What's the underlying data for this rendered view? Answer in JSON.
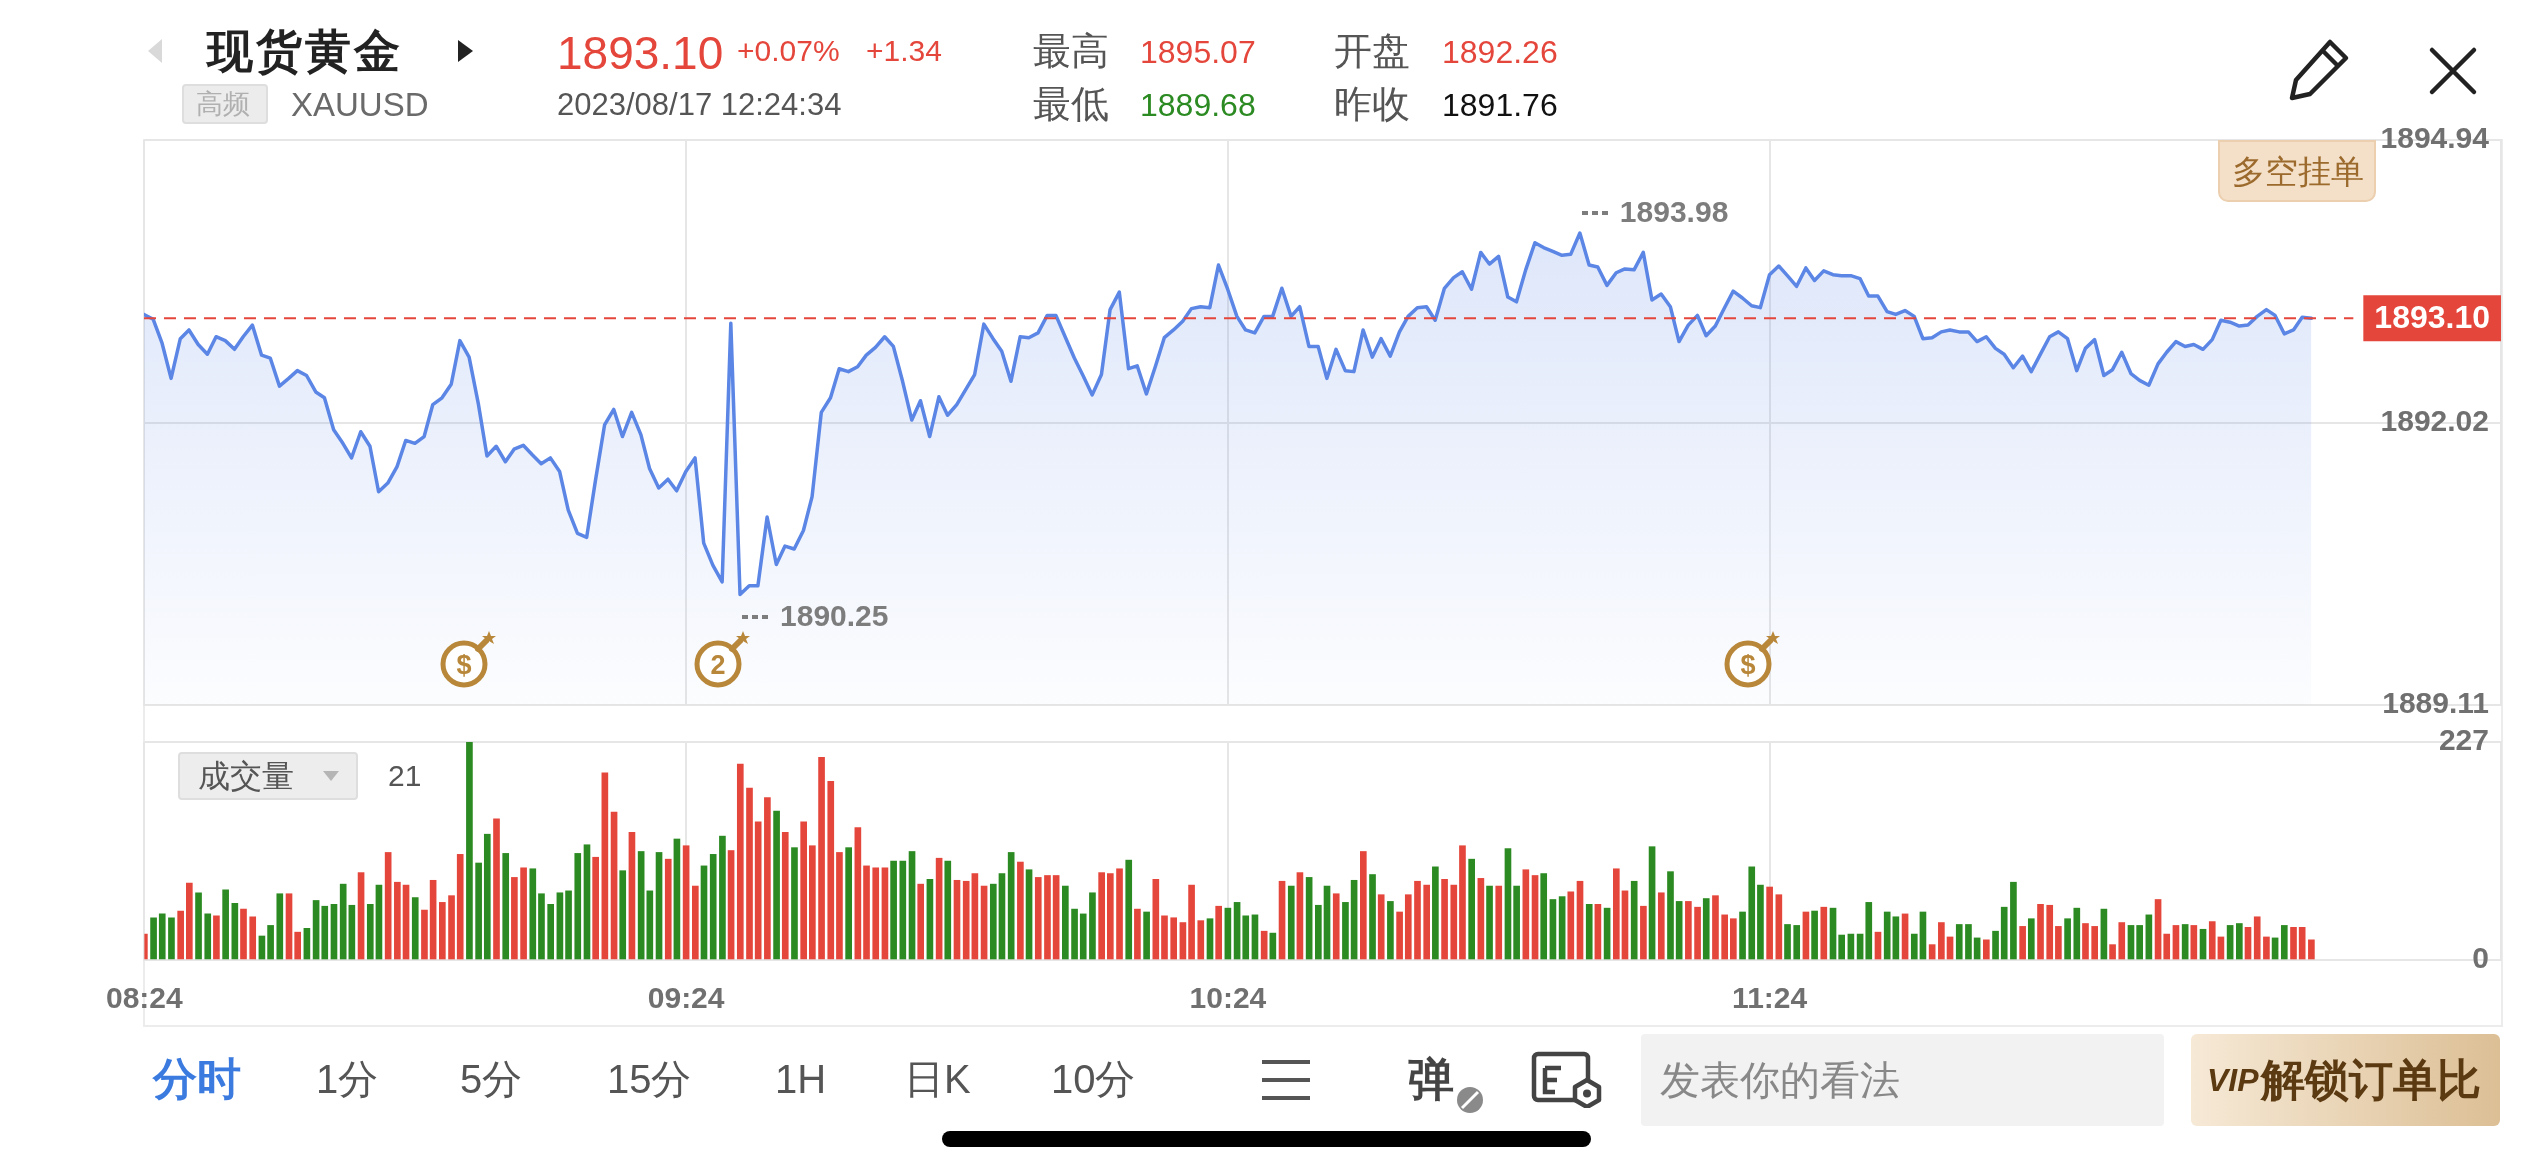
{
  "chart_data": [
    {
      "type": "area",
      "title": "现货黄金",
      "subtitle": "XAUUSD",
      "x": [
        8.4,
        8.417,
        8.433,
        8.45,
        8.467,
        8.483,
        8.5,
        8.517,
        8.533,
        8.55,
        8.567,
        8.583,
        8.6,
        8.617,
        8.633,
        8.65,
        8.667,
        8.683,
        8.7,
        8.717,
        8.733,
        8.75,
        8.767,
        8.783,
        8.8,
        8.817,
        8.833,
        8.85,
        8.867,
        8.883,
        8.9,
        8.917,
        8.933,
        8.95,
        8.967,
        8.983,
        9,
        9.017,
        9.033,
        9.05,
        9.067,
        9.083,
        9.1,
        9.117,
        9.133,
        9.15,
        9.167,
        9.183,
        9.2,
        9.217,
        9.233,
        9.25,
        9.267,
        9.283,
        9.3,
        9.317,
        9.333,
        9.35,
        9.367,
        9.383,
        9.4,
        9.417,
        9.433,
        9.45,
        9.467,
        9.483,
        9.5,
        9.517,
        9.533,
        9.55,
        9.567,
        9.583,
        9.6,
        9.617,
        9.633,
        9.65,
        9.667,
        9.683,
        9.7,
        9.717,
        9.733,
        9.75,
        9.767,
        9.783,
        9.8,
        9.817,
        9.833,
        9.85,
        9.867,
        9.883,
        9.9,
        9.917,
        9.933,
        9.95,
        9.967,
        9.983,
        10,
        10.017,
        10.033,
        10.05,
        10.067,
        10.083,
        10.1,
        10.117,
        10.133,
        10.15,
        10.167,
        10.183,
        10.2,
        10.217,
        10.233,
        10.25,
        10.267,
        10.283,
        10.3,
        10.317,
        10.333,
        10.35,
        10.367,
        10.383,
        10.4,
        10.417,
        10.433,
        10.45,
        10.467,
        10.483,
        10.5,
        10.517,
        10.533,
        10.55,
        10.567,
        10.583,
        10.6,
        10.617,
        10.633,
        10.65,
        10.667,
        10.683,
        10.7,
        10.717,
        10.733,
        10.75,
        10.767,
        10.783,
        10.8,
        10.817,
        10.833,
        10.85,
        10.867,
        10.883,
        10.9,
        10.917,
        10.933,
        10.95,
        10.967,
        10.983,
        11,
        11.017,
        11.033,
        11.05,
        11.067,
        11.083,
        11.1,
        11.117,
        11.133,
        11.15,
        11.167,
        11.183,
        11.2,
        11.217,
        11.233,
        11.25,
        11.267,
        11.283,
        11.3,
        11.317,
        11.333,
        11.35,
        11.367,
        11.383,
        11.4,
        11.417,
        11.433,
        11.45,
        11.467,
        11.483,
        11.5,
        11.517,
        11.533,
        11.55,
        11.567,
        11.583,
        11.6,
        11.617,
        11.633,
        11.65,
        11.667,
        11.683,
        11.7,
        11.717,
        11.733,
        11.75,
        11.767,
        11.783,
        11.8,
        11.817,
        11.833,
        11.85,
        11.867,
        11.883,
        11.9,
        11.917,
        11.933,
        11.95,
        11.967,
        11.983,
        12,
        12.017,
        12.033,
        12.05,
        12.067,
        12.083,
        12.1,
        12.117,
        12.133,
        12.15,
        12.167,
        12.183,
        12.2,
        12.217,
        12.233,
        12.25,
        12.267,
        12.283,
        12.3,
        12.317,
        12.333,
        12.35,
        12.367,
        12.383,
        12.4
      ],
      "values": [
        1893.14,
        1893.09,
        1892.85,
        1892.48,
        1892.89,
        1892.98,
        1892.83,
        1892.73,
        1892.91,
        1892.87,
        1892.78,
        1892.91,
        1893.03,
        1892.72,
        1892.69,
        1892.4,
        1892.48,
        1892.56,
        1892.51,
        1892.34,
        1892.28,
        1891.95,
        1891.81,
        1891.66,
        1891.93,
        1891.78,
        1891.31,
        1891.4,
        1891.57,
        1891.84,
        1891.81,
        1891.88,
        1892.21,
        1892.28,
        1892.42,
        1892.87,
        1892.7,
        1892.22,
        1891.68,
        1891.78,
        1891.62,
        1891.75,
        1891.79,
        1891.69,
        1891.6,
        1891.66,
        1891.52,
        1891.12,
        1890.88,
        1890.84,
        1891.42,
        1892.0,
        1892.16,
        1891.88,
        1892.13,
        1891.9,
        1891.55,
        1891.35,
        1891.44,
        1891.32,
        1891.52,
        1891.66,
        1890.78,
        1890.55,
        1890.38,
        1893.05,
        1890.25,
        1890.34,
        1890.34,
        1891.05,
        1890.56,
        1890.75,
        1890.72,
        1890.91,
        1891.26,
        1892.13,
        1892.28,
        1892.58,
        1892.55,
        1892.6,
        1892.72,
        1892.8,
        1892.91,
        1892.81,
        1892.45,
        1892.05,
        1892.25,
        1891.88,
        1892.29,
        1892.1,
        1892.21,
        1892.37,
        1892.52,
        1893.04,
        1892.89,
        1892.76,
        1892.45,
        1892.91,
        1892.9,
        1892.95,
        1893.13,
        1893.13,
        1892.91,
        1892.69,
        1892.51,
        1892.31,
        1892.52,
        1893.19,
        1893.37,
        1892.58,
        1892.61,
        1892.32,
        1892.61,
        1892.9,
        1892.98,
        1893.07,
        1893.2,
        1893.22,
        1893.21,
        1893.65,
        1893.4,
        1893.12,
        1892.98,
        1892.95,
        1893.12,
        1893.12,
        1893.41,
        1893.12,
        1893.22,
        1892.81,
        1892.81,
        1892.48,
        1892.78,
        1892.56,
        1892.55,
        1892.98,
        1892.7,
        1892.89,
        1892.71,
        1892.96,
        1893.12,
        1893.21,
        1893.22,
        1893.08,
        1893.41,
        1893.52,
        1893.58,
        1893.4,
        1893.78,
        1893.66,
        1893.74,
        1893.32,
        1893.27,
        1893.6,
        1893.88,
        1893.83,
        1893.79,
        1893.75,
        1893.76,
        1893.98,
        1893.65,
        1893.63,
        1893.44,
        1893.57,
        1893.61,
        1893.6,
        1893.78,
        1893.29,
        1893.35,
        1893.22,
        1892.86,
        1893.03,
        1893.13,
        1892.92,
        1893.02,
        1893.21,
        1893.38,
        1893.31,
        1893.23,
        1893.21,
        1893.55,
        1893.64,
        1893.54,
        1893.43,
        1893.62,
        1893.49,
        1893.59,
        1893.55,
        1893.54,
        1893.54,
        1893.51,
        1893.33,
        1893.33,
        1893.17,
        1893.14,
        1893.18,
        1893.12,
        1892.89,
        1892.9,
        1892.96,
        1892.98,
        1892.96,
        1892.96,
        1892.86,
        1892.91,
        1892.79,
        1892.73,
        1892.59,
        1892.71,
        1892.55,
        1892.73,
        1892.91,
        1892.96,
        1892.89,
        1892.56,
        1892.79,
        1892.88,
        1892.51,
        1892.57,
        1892.75,
        1892.53,
        1892.46,
        1892.41,
        1892.63,
        1892.75,
        1892.86,
        1892.81,
        1892.83,
        1892.78,
        1892.88,
        1893.08,
        1893.06,
        1893.02,
        1893.03,
        1893.12,
        1893.19,
        1893.13,
        1892.94,
        1892.98,
        1893.11,
        1893.1
      ],
      "color": "#5b86e5",
      "marker": "none",
      "xlim": [
        8.4,
        12.75
      ],
      "xticks": [
        8.4,
        9.4,
        10.4,
        11.4
      ],
      "ylim": [
        1889.11,
        1894.94
      ],
      "yticks": [
        1889.11,
        1892.02,
        1894.94
      ],
      "grid": true,
      "tick_labels": "y",
      "ref_lines": [
        {
          "axis": "y",
          "value": 1893.1,
          "label": "1893.10",
          "color": "#e5463b",
          "line_style": "dashed"
        }
      ],
      "annotations": [
        "高频",
        "1893.10",
        "+0.07%",
        "+1.34",
        "2023/08/17 12:24:34",
        "最高",
        "1895.07",
        "最低",
        "1889.68",
        "开盘",
        "1892.26",
        "昨收",
        "1891.76",
        "多空挂单",
        {
          "text": "1893.98",
          "x": 11.05,
          "y": 1893.98
        },
        {
          "text": "1890.25",
          "x": 9.5,
          "y": 1890.25
        },
        {
          "text": "$",
          "x": 8.99,
          "y": 1889.53
        },
        {
          "text": "2",
          "x": 9.46,
          "y": 1889.53
        },
        {
          "text": "$",
          "x": 11.36,
          "y": 1889.53
        }
      ]
    },
    {
      "type": "bar",
      "title": "成交量",
      "annotations": [
        "21"
      ],
      "x": [
        8.4,
        8.417,
        8.433,
        8.45,
        8.467,
        8.483,
        8.5,
        8.517,
        8.533,
        8.55,
        8.567,
        8.583,
        8.6,
        8.617,
        8.633,
        8.65,
        8.667,
        8.683,
        8.7,
        8.717,
        8.733,
        8.75,
        8.767,
        8.783,
        8.8,
        8.817,
        8.833,
        8.85,
        8.867,
        8.883,
        8.9,
        8.917,
        8.933,
        8.95,
        8.967,
        8.983,
        9,
        9.017,
        9.033,
        9.05,
        9.067,
        9.083,
        9.1,
        9.117,
        9.133,
        9.15,
        9.167,
        9.183,
        9.2,
        9.217,
        9.233,
        9.25,
        9.267,
        9.283,
        9.3,
        9.317,
        9.333,
        9.35,
        9.367,
        9.383,
        9.4,
        9.417,
        9.433,
        9.45,
        9.467,
        9.483,
        9.5,
        9.517,
        9.533,
        9.55,
        9.567,
        9.583,
        9.6,
        9.617,
        9.633,
        9.65,
        9.667,
        9.683,
        9.7,
        9.717,
        9.733,
        9.75,
        9.767,
        9.783,
        9.8,
        9.817,
        9.833,
        9.85,
        9.867,
        9.883,
        9.9,
        9.917,
        9.933,
        9.95,
        9.967,
        9.983,
        10,
        10.017,
        10.033,
        10.05,
        10.067,
        10.083,
        10.1,
        10.117,
        10.133,
        10.15,
        10.167,
        10.183,
        10.2,
        10.217,
        10.233,
        10.25,
        10.267,
        10.283,
        10.3,
        10.317,
        10.333,
        10.35,
        10.367,
        10.383,
        10.4,
        10.417,
        10.433,
        10.45,
        10.467,
        10.483,
        10.5,
        10.517,
        10.533,
        10.55,
        10.567,
        10.583,
        10.6,
        10.617,
        10.633,
        10.65,
        10.667,
        10.683,
        10.7,
        10.717,
        10.733,
        10.75,
        10.767,
        10.783,
        10.8,
        10.817,
        10.833,
        10.85,
        10.867,
        10.883,
        10.9,
        10.917,
        10.933,
        10.95,
        10.967,
        10.983,
        11,
        11.017,
        11.033,
        11.05,
        11.067,
        11.083,
        11.1,
        11.117,
        11.133,
        11.15,
        11.167,
        11.183,
        11.2,
        11.217,
        11.233,
        11.25,
        11.267,
        11.283,
        11.3,
        11.317,
        11.333,
        11.35,
        11.367,
        11.383,
        11.4,
        11.417,
        11.433,
        11.45,
        11.467,
        11.483,
        11.5,
        11.517,
        11.533,
        11.55,
        11.567,
        11.583,
        11.6,
        11.617,
        11.633,
        11.65,
        11.667,
        11.683,
        11.7,
        11.717,
        11.733,
        11.75,
        11.767,
        11.783,
        11.8,
        11.817,
        11.833,
        11.85,
        11.867,
        11.883,
        11.9,
        11.917,
        11.933,
        11.95,
        11.967,
        11.983,
        12,
        12.017,
        12.033,
        12.05,
        12.067,
        12.083,
        12.1,
        12.117,
        12.133,
        12.15,
        12.167,
        12.183,
        12.2,
        12.217,
        12.233,
        12.25,
        12.267,
        12.283,
        12.3,
        12.317,
        12.333,
        12.35,
        12.367,
        12.383,
        12.4
      ],
      "values": [
        27,
        44,
        48,
        44,
        51,
        80,
        70,
        48,
        46,
        73,
        59,
        53,
        45,
        25,
        36,
        69,
        69,
        29,
        33,
        62,
        56,
        58,
        79,
        57,
        91,
        58,
        78,
        112,
        81,
        78,
        65,
        52,
        83,
        60,
        67,
        110,
        227,
        101,
        131,
        147,
        111,
        86,
        96,
        95,
        69,
        58,
        70,
        72,
        111,
        120,
        107,
        195,
        154,
        93,
        133,
        113,
        72,
        112,
        105,
        126,
        119,
        77,
        98,
        110,
        129,
        114,
        204,
        179,
        144,
        169,
        155,
        133,
        117,
        144,
        119,
        211,
        186,
        112,
        117,
        138,
        98,
        96,
        96,
        103,
        103,
        113,
        79,
        84,
        106,
        103,
        83,
        82,
        90,
        77,
        79,
        90,
        112,
        102,
        94,
        86,
        88,
        88,
        77,
        53,
        48,
        70,
        91,
        90,
        95,
        104,
        53,
        50,
        84,
        46,
        44,
        39,
        78,
        41,
        43,
        56,
        54,
        60,
        46,
        47,
        30,
        28,
        82,
        77,
        91,
        86,
        57,
        77,
        69,
        60,
        83,
        113,
        89,
        68,
        61,
        50,
        68,
        82,
        78,
        97,
        84,
        78,
        119,
        105,
        85,
        77,
        77,
        116,
        77,
        94,
        88,
        90,
        63,
        66,
        71,
        82,
        58,
        58,
        54,
        95,
        72,
        82,
        56,
        118,
        70,
        92,
        61,
        61,
        55,
        64,
        67,
        47,
        43,
        50,
        97,
        78,
        76,
        68,
        37,
        36,
        50,
        51,
        55,
        54,
        26,
        27,
        27,
        60,
        29,
        50,
        45,
        48,
        27,
        50,
        16,
        39,
        24,
        37,
        37,
        23,
        21,
        30,
        55,
        81,
        35,
        43,
        58,
        57,
        35,
        43,
        54,
        38,
        35,
        53,
        16,
        39,
        36,
        36,
        47,
        63,
        27,
        36,
        37,
        36,
        32,
        40,
        24,
        36,
        38,
        34,
        45,
        24,
        23,
        36,
        34,
        34,
        21
      ],
      "colors": [
        "#e5463b",
        "#2b8a21",
        "#2b8a21",
        "#2b8a21",
        "#e5463b",
        "#e5463b",
        "#2b8a21",
        "#2b8a21",
        "#e5463b",
        "#2b8a21",
        "#2b8a21",
        "#e5463b",
        "#e5463b",
        "#2b8a21",
        "#2b8a21",
        "#2b8a21",
        "#e5463b",
        "#e5463b",
        "#2b8a21",
        "#2b8a21",
        "#2b8a21",
        "#2b8a21",
        "#2b8a21",
        "#2b8a21",
        "#e5463b",
        "#2b8a21",
        "#2b8a21",
        "#e5463b",
        "#e5463b",
        "#e5463b",
        "#2b8a21",
        "#e5463b",
        "#e5463b",
        "#e5463b",
        "#e5463b",
        "#e5463b",
        "#2b8a21",
        "#2b8a21",
        "#2b8a21",
        "#e5463b",
        "#2b8a21",
        "#e5463b",
        "#e5463b",
        "#2b8a21",
        "#2b8a21",
        "#2b8a21",
        "#2b8a21",
        "#2b8a21",
        "#2b8a21",
        "#2b8a21",
        "#e5463b",
        "#e5463b",
        "#e5463b",
        "#2b8a21",
        "#e5463b",
        "#2b8a21",
        "#2b8a21",
        "#2b8a21",
        "#e5463b",
        "#2b8a21",
        "#e5463b",
        "#e5463b",
        "#2b8a21",
        "#2b8a21",
        "#2b8a21",
        "#e5463b",
        "#e5463b",
        "#e5463b",
        "#e5463b",
        "#e5463b",
        "#2b8a21",
        "#e5463b",
        "#2b8a21",
        "#e5463b",
        "#e5463b",
        "#e5463b",
        "#e5463b",
        "#e5463b",
        "#2b8a21",
        "#e5463b",
        "#e5463b",
        "#e5463b",
        "#e5463b",
        "#2b8a21",
        "#2b8a21",
        "#2b8a21",
        "#e5463b",
        "#2b8a21",
        "#e5463b",
        "#2b8a21",
        "#e5463b",
        "#e5463b",
        "#e5463b",
        "#e5463b",
        "#2b8a21",
        "#2b8a21",
        "#2b8a21",
        "#e5463b",
        "#2b8a21",
        "#e5463b",
        "#e5463b",
        "#e5463b",
        "#2b8a21",
        "#2b8a21",
        "#2b8a21",
        "#2b8a21",
        "#e5463b",
        "#e5463b",
        "#e5463b",
        "#2b8a21",
        "#e5463b",
        "#2b8a21",
        "#e5463b",
        "#e5463b",
        "#e5463b",
        "#e5463b",
        "#e5463b",
        "#e5463b",
        "#2b8a21",
        "#e5463b",
        "#2b8a21",
        "#2b8a21",
        "#2b8a21",
        "#2b8a21",
        "#e5463b",
        "#2b8a21",
        "#e5463b",
        "#2b8a21",
        "#e5463b",
        "#2b8a21",
        "#2b8a21",
        "#2b8a21",
        "#e5463b",
        "#2b8a21",
        "#2b8a21",
        "#e5463b",
        "#2b8a21",
        "#e5463b",
        "#2b8a21",
        "#e5463b",
        "#e5463b",
        "#e5463b",
        "#e5463b",
        "#2b8a21",
        "#e5463b",
        "#e5463b",
        "#e5463b",
        "#2b8a21",
        "#e5463b",
        "#2b8a21",
        "#e5463b",
        "#2b8a21",
        "#2b8a21",
        "#e5463b",
        "#e5463b",
        "#2b8a21",
        "#2b8a21",
        "#2b8a21",
        "#e5463b",
        "#e5463b",
        "#2b8a21",
        "#e5463b",
        "#2b8a21",
        "#e5463b",
        "#e5463b",
        "#2b8a21",
        "#e5463b",
        "#2b8a21",
        "#e5463b",
        "#2b8a21",
        "#2b8a21",
        "#e5463b",
        "#e5463b",
        "#2b8a21",
        "#e5463b",
        "#e5463b",
        "#e5463b",
        "#2b8a21",
        "#2b8a21",
        "#2b8a21",
        "#e5463b",
        "#e5463b",
        "#2b8a21",
        "#2b8a21",
        "#e5463b",
        "#2b8a21",
        "#e5463b",
        "#2b8a21",
        "#2b8a21",
        "#2b8a21",
        "#2b8a21",
        "#2b8a21",
        "#e5463b",
        "#2b8a21",
        "#2b8a21",
        "#e5463b",
        "#2b8a21",
        "#2b8a21",
        "#e5463b",
        "#e5463b",
        "#e5463b",
        "#2b8a21",
        "#2b8a21",
        "#2b8a21",
        "#e5463b",
        "#2b8a21",
        "#2b8a21",
        "#2b8a21",
        "#e5463b",
        "#2b8a21",
        "#e5463b",
        "#e5463b",
        "#e5463b",
        "#2b8a21",
        "#2b8a21",
        "#e5463b",
        "#e5463b",
        "#2b8a21",
        "#e5463b",
        "#e5463b",
        "#2b8a21",
        "#2b8a21",
        "#2b8a21",
        "#e5463b",
        "#e5463b",
        "#e5463b",
        "#2b8a21",
        "#e5463b",
        "#2b8a21",
        "#e5463b",
        "#e5463b",
        "#2b8a21",
        "#2b8a21",
        "#e5463b",
        "#e5463b",
        "#e5463b",
        "#2b8a21",
        "#2b8a21",
        "#e5463b",
        "#e5463b",
        "#e5463b"
      ],
      "xlim": [
        8.4,
        12.75
      ],
      "xticks": [
        {
          "value": 8.4,
          "label": "08:24"
        },
        {
          "value": 9.4,
          "label": "09:24"
        },
        {
          "value": 10.4,
          "label": "10:24"
        },
        {
          "value": 11.4,
          "label": "11:24"
        }
      ],
      "ylim": [
        0,
        227
      ],
      "yticks": [
        0,
        227
      ],
      "grid": true
    },
    {
      "type": "other",
      "annotations": [
        "分时",
        "1分",
        "5分",
        "15分",
        "1H",
        "日K",
        "10分",
        "弹",
        "发表你的看法",
        "VIP",
        "解锁订单比"
      ]
    }
  ]
}
